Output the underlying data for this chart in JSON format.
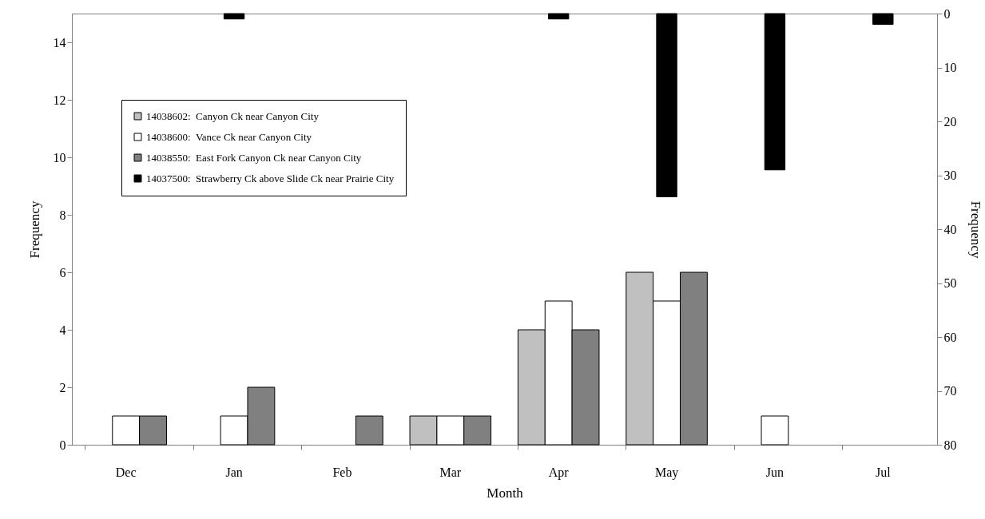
{
  "chart_data": {
    "type": "bar",
    "xlabel": "Month",
    "ylabel": "Frequency",
    "y2label": "Frequency",
    "categories": [
      "Dec",
      "Jan",
      "Feb",
      "Mar",
      "Apr",
      "May",
      "Jun",
      "Jul"
    ],
    "series": [
      {
        "name": "14038602:  Canyon Ck near Canyon City",
        "color": "#c0c0c0",
        "values": [
          0,
          0,
          0,
          1,
          4,
          6,
          0,
          0
        ]
      },
      {
        "name": "14038600:  Vance Ck near Canyon City",
        "color": "#ffffff",
        "values": [
          1,
          1,
          0,
          1,
          5,
          5,
          1,
          0
        ]
      },
      {
        "name": "14038550:  East Fork Canyon Ck near Canyon City",
        "color": "#808080",
        "values": [
          1,
          2,
          1,
          1,
          4,
          6,
          0,
          0
        ]
      },
      {
        "name": "14037500:  Strawberry Ck above Slide Ck near Prairie City",
        "color": "#000000",
        "axis": "y2",
        "values": [
          0,
          1,
          0,
          0,
          1,
          34,
          29,
          2
        ]
      }
    ],
    "ylim": [
      0,
      15
    ],
    "yticks": [
      0,
      2,
      4,
      6,
      8,
      10,
      12,
      14
    ],
    "y2lim": [
      80,
      0
    ],
    "y2ticks": [
      0,
      10,
      20,
      30,
      40,
      50,
      60,
      70,
      80
    ],
    "grid": false,
    "legend": "top left"
  }
}
